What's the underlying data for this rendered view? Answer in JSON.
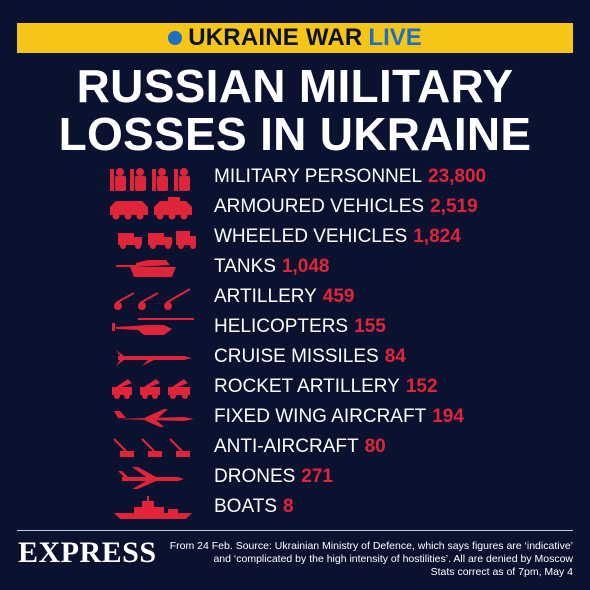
{
  "banner": {
    "prefix": "UKRAINE WAR",
    "live": "LIVE"
  },
  "title": {
    "line1": "RUSSIAN MILITARY",
    "line2": "LOSSES IN UKRAINE"
  },
  "colors": {
    "background": "#0b1230",
    "banner": "#f5c518",
    "accent_red": "#e0243a",
    "live_blue": "#1f6fc0"
  },
  "losses": [
    {
      "label": "MILITARY PERSONNEL",
      "value": "23,800",
      "icon": "soldiers-icon"
    },
    {
      "label": "ARMOURED VEHICLES",
      "value": "2,519",
      "icon": "armoured-vehicles-icon"
    },
    {
      "label": "WHEELED VEHICLES",
      "value": "1,824",
      "icon": "wheeled-vehicles-icon"
    },
    {
      "label": "TANKS",
      "value": "1,048",
      "icon": "tank-icon"
    },
    {
      "label": "ARTILLERY",
      "value": "459",
      "icon": "artillery-icon"
    },
    {
      "label": "HELICOPTERS",
      "value": "155",
      "icon": "helicopter-icon"
    },
    {
      "label": "CRUISE MISSILES",
      "value": "84",
      "icon": "cruise-missile-icon"
    },
    {
      "label": "ROCKET ARTILLERY",
      "value": "152",
      "icon": "rocket-artillery-icon"
    },
    {
      "label": "FIXED WING AIRCRAFT",
      "value": "194",
      "icon": "fixed-wing-aircraft-icon"
    },
    {
      "label": "ANTI-AIRCRAFT",
      "value": "80",
      "icon": "anti-aircraft-icon"
    },
    {
      "label": "DRONES",
      "value": "271",
      "icon": "drone-icon"
    },
    {
      "label": "BOATS",
      "value": "8",
      "icon": "boat-icon"
    }
  ],
  "footer": {
    "logo": "EXPRESS",
    "source_line1": "From 24 Feb. Source: Ukrainian Ministry of Defence, which says figures are ‘indicative’",
    "source_line2": "and ‘complicated by the high intensity of hostilities’. All are denied by Moscow",
    "stats_line": "Stats correct as of 7pm,  May 4"
  }
}
